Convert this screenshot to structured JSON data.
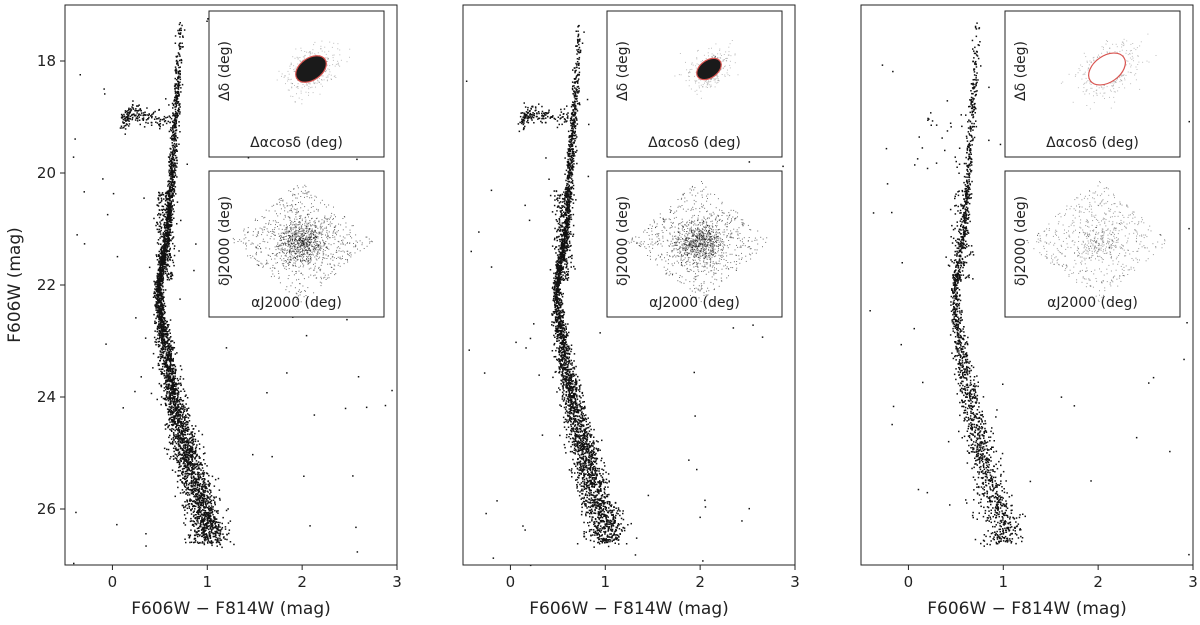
{
  "figure": {
    "ylabel": "F606W (mag)",
    "xlabel": "F606W − F814W (mag)"
  },
  "chart_data": [
    {
      "type": "scatter",
      "panel": "left",
      "xlabel": "F606W − F814W (mag)",
      "ylabel": "F606W (mag)",
      "xlim": [
        -0.5,
        3.0
      ],
      "ylim": [
        27.0,
        17.0
      ],
      "y_inverted": true,
      "xticks": [
        0,
        1,
        2,
        3
      ],
      "yticks": [
        18,
        20,
        22,
        24,
        26
      ],
      "grid": false,
      "series": [
        {
          "ridge": [
            [
              0.72,
              17.3
            ],
            [
              0.7,
              18.0
            ],
            [
              0.66,
              19.0
            ],
            [
              0.62,
              20.0
            ],
            [
              0.58,
              21.0
            ],
            [
              0.52,
              21.6
            ],
            [
              0.48,
              22.0
            ],
            [
              0.5,
              22.5
            ],
            [
              0.58,
              23.5
            ],
            [
              0.7,
              24.5
            ],
            [
              0.85,
              25.5
            ],
            [
              0.95,
              26.0
            ],
            [
              1.0,
              26.3
            ]
          ],
          "horizontal_branch": [
            [
              0.1,
              19.1
            ],
            [
              0.15,
              19.0
            ],
            [
              0.2,
              18.9
            ],
            [
              0.3,
              18.95
            ],
            [
              0.45,
              19.0
            ],
            [
              0.6,
              19.0
            ]
          ],
          "density_note": "dense main sequence, red giant branch and blue horizontal branch; sparse field stars"
        }
      ],
      "insets": [
        {
          "xlabel": "Δαcosδ (deg)",
          "ylabel": "Δδ (deg)",
          "contour_color": "#d9534f",
          "contour_fill": "dark",
          "blob_spread": 1.0
        },
        {
          "xlabel": "αJ2000 (deg)",
          "ylabel": "δJ2000 (deg)",
          "shape": "diamond",
          "center_concentration": "strong"
        }
      ]
    },
    {
      "type": "scatter",
      "panel": "middle",
      "xlabel": "F606W − F814W (mag)",
      "xlim": [
        -0.5,
        3.0
      ],
      "ylim": [
        27.0,
        17.0
      ],
      "y_inverted": true,
      "xticks": [
        0,
        1,
        2,
        3
      ],
      "grid": false,
      "insets": [
        {
          "xlabel": "Δαcosδ (deg)",
          "ylabel": "Δδ (deg)",
          "contour_color": "#d9534f",
          "contour_fill": "dark",
          "blob_spread": 0.8
        },
        {
          "xlabel": "αJ2000 (deg)",
          "ylabel": "δJ2000 (deg)",
          "shape": "diamond",
          "center_concentration": "strong"
        }
      ]
    },
    {
      "type": "scatter",
      "panel": "right",
      "xlabel": "F606W − F814W (mag)",
      "xlim": [
        -0.5,
        3.0
      ],
      "ylim": [
        27.0,
        17.0
      ],
      "y_inverted": true,
      "xticks": [
        0,
        1,
        2,
        3
      ],
      "grid": false,
      "insets": [
        {
          "xlabel": "Δαcosδ (deg)",
          "ylabel": "Δδ (deg)",
          "contour_color": "#d9534f",
          "contour_fill": "white",
          "blob_spread": 1.2
        },
        {
          "xlabel": "αJ2000 (deg)",
          "ylabel": "δJ2000 (deg)",
          "shape": "diamond",
          "center_concentration": "weak"
        }
      ]
    }
  ]
}
